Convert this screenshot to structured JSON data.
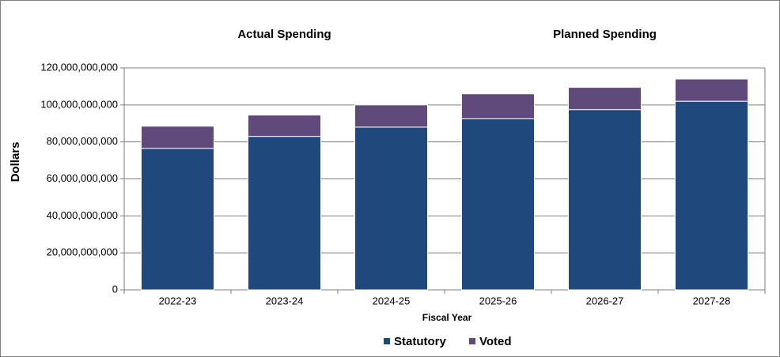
{
  "chart_data": {
    "type": "stacked-bar",
    "annotations": [
      "Actual Spending",
      "Planned Spending"
    ],
    "x_label": "Fiscal Year",
    "y_label": "Dollars",
    "categories": [
      "2022-23",
      "2023-24",
      "2024-25",
      "2025-26",
      "2026-27",
      "2027-28"
    ],
    "series": [
      {
        "name": "Statutory",
        "color": "#1f497d",
        "values": [
          76500000000,
          83000000000,
          88000000000,
          92500000000,
          97500000000,
          102000000000
        ]
      },
      {
        "name": "Voted",
        "color": "#604a7b",
        "values": [
          12000000000,
          11500000000,
          12000000000,
          13500000000,
          12000000000,
          12000000000
        ]
      }
    ],
    "ylim": [
      0,
      120000000000
    ],
    "yticks": [
      0,
      {
        "value": 20000000000,
        "label": "20,000,000,000"
      },
      {
        "value": 40000000000,
        "label": "40,000,000,000"
      },
      {
        "value": 60000000000,
        "label": "60,000,000,000"
      },
      {
        "value": 80000000000,
        "label": "80,000,000,000"
      },
      {
        "value": 100000000000,
        "label": "100,000,000,000"
      },
      {
        "value": 120000000000,
        "label": "120,000,000,000"
      }
    ],
    "grid": true,
    "legend": "bottom"
  }
}
